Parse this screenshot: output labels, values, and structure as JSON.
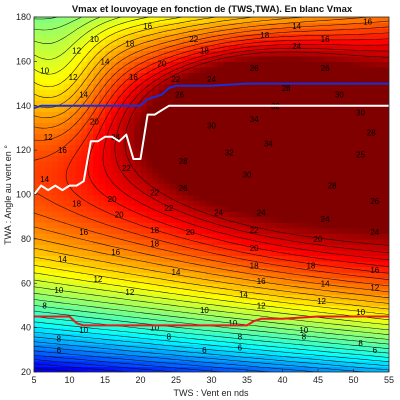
{
  "chart_data": {
    "type": "contour",
    "title": "Vmax et louvoyage en fonction de (TWS,TWA). En blanc Vmax",
    "xlabel": "TWS : Vent en nds",
    "ylabel": "TWA : Angle au vent en °",
    "xlim": [
      5,
      55
    ],
    "ylim": [
      20,
      180
    ],
    "xticks": [
      "5",
      "10",
      "15",
      "20",
      "25",
      "30",
      "35",
      "40",
      "45",
      "50",
      "55"
    ],
    "yticks": [
      "20",
      "40",
      "60",
      "80",
      "100",
      "120",
      "140",
      "160",
      "180"
    ],
    "grid": false,
    "colormap": "jet",
    "z_range": [
      0,
      36
    ],
    "contour_labels": [
      {
        "x": 13.5,
        "y": 170,
        "text": "10"
      },
      {
        "x": 21,
        "y": 176,
        "text": "16"
      },
      {
        "x": 42,
        "y": 176,
        "text": "14"
      },
      {
        "x": 52,
        "y": 178,
        "text": "16"
      },
      {
        "x": 11,
        "y": 165,
        "text": "12"
      },
      {
        "x": 15,
        "y": 160,
        "text": "14"
      },
      {
        "x": 18.5,
        "y": 168,
        "text": "18"
      },
      {
        "x": 27.5,
        "y": 170,
        "text": "22"
      },
      {
        "x": 37.5,
        "y": 172,
        "text": "18"
      },
      {
        "x": 46,
        "y": 170,
        "text": "16"
      },
      {
        "x": 23,
        "y": 159,
        "text": "20"
      },
      {
        "x": 29,
        "y": 165,
        "text": "18"
      },
      {
        "x": 42,
        "y": 167,
        "text": "24"
      },
      {
        "x": 6.5,
        "y": 156,
        "text": "10"
      },
      {
        "x": 10.5,
        "y": 153,
        "text": "12"
      },
      {
        "x": 12,
        "y": 145,
        "text": "14"
      },
      {
        "x": 19,
        "y": 153,
        "text": "16"
      },
      {
        "x": 25,
        "y": 152,
        "text": "22"
      },
      {
        "x": 30,
        "y": 152,
        "text": "24"
      },
      {
        "x": 36,
        "y": 157,
        "text": "26"
      },
      {
        "x": 46,
        "y": 157,
        "text": "26"
      },
      {
        "x": 40.5,
        "y": 148,
        "text": "28"
      },
      {
        "x": 25.5,
        "y": 145,
        "text": "26"
      },
      {
        "x": 39,
        "y": 140,
        "text": "32"
      },
      {
        "x": 36,
        "y": 134,
        "text": "34"
      },
      {
        "x": 30,
        "y": 131,
        "text": "30"
      },
      {
        "x": 7,
        "y": 126,
        "text": "12"
      },
      {
        "x": 9,
        "y": 120,
        "text": "16"
      },
      {
        "x": 13.5,
        "y": 133,
        "text": "20"
      },
      {
        "x": 16.5,
        "y": 126,
        "text": "24"
      },
      {
        "x": 48,
        "y": 145,
        "text": "30"
      },
      {
        "x": 51,
        "y": 137,
        "text": "30"
      },
      {
        "x": 52.5,
        "y": 128,
        "text": "28"
      },
      {
        "x": 51,
        "y": 118,
        "text": "25"
      },
      {
        "x": 38,
        "y": 123,
        "text": "34"
      },
      {
        "x": 32.5,
        "y": 119,
        "text": "32"
      },
      {
        "x": 26,
        "y": 115,
        "text": "28"
      },
      {
        "x": 18,
        "y": 112,
        "text": "22"
      },
      {
        "x": 6.5,
        "y": 107,
        "text": "14"
      },
      {
        "x": 11,
        "y": 96,
        "text": "18"
      },
      {
        "x": 16,
        "y": 98,
        "text": "20"
      },
      {
        "x": 22,
        "y": 101,
        "text": "22"
      },
      {
        "x": 26,
        "y": 103,
        "text": "26"
      },
      {
        "x": 35,
        "y": 109,
        "text": "30"
      },
      {
        "x": 47,
        "y": 104,
        "text": "28"
      },
      {
        "x": 53,
        "y": 97,
        "text": "26"
      },
      {
        "x": 17,
        "y": 91,
        "text": "20"
      },
      {
        "x": 24,
        "y": 94,
        "text": "22"
      },
      {
        "x": 31,
        "y": 92,
        "text": "24"
      },
      {
        "x": 37,
        "y": 92,
        "text": "24"
      },
      {
        "x": 46,
        "y": 89,
        "text": "24"
      },
      {
        "x": 53,
        "y": 83,
        "text": "24"
      },
      {
        "x": 12,
        "y": 83,
        "text": "16"
      },
      {
        "x": 22,
        "y": 84,
        "text": "18"
      },
      {
        "x": 27,
        "y": 83,
        "text": "20"
      },
      {
        "x": 36,
        "y": 84,
        "text": "22"
      },
      {
        "x": 45,
        "y": 80,
        "text": "20"
      },
      {
        "x": 16.5,
        "y": 74,
        "text": "16"
      },
      {
        "x": 22,
        "y": 78,
        "text": "18"
      },
      {
        "x": 36,
        "y": 76,
        "text": "20"
      },
      {
        "x": 9,
        "y": 71,
        "text": "14"
      },
      {
        "x": 36,
        "y": 68,
        "text": "18"
      },
      {
        "x": 44,
        "y": 68,
        "text": "18"
      },
      {
        "x": 53,
        "y": 66,
        "text": "16"
      },
      {
        "x": 14,
        "y": 62,
        "text": "12"
      },
      {
        "x": 25,
        "y": 65,
        "text": "14"
      },
      {
        "x": 37,
        "y": 61,
        "text": "16"
      },
      {
        "x": 46,
        "y": 60,
        "text": "14"
      },
      {
        "x": 53,
        "y": 58,
        "text": "12"
      },
      {
        "x": 8.5,
        "y": 57,
        "text": "10"
      },
      {
        "x": 18.5,
        "y": 56,
        "text": "12"
      },
      {
        "x": 34.5,
        "y": 55,
        "text": "14"
      },
      {
        "x": 6.5,
        "y": 50,
        "text": "8"
      },
      {
        "x": 29,
        "y": 48,
        "text": "10"
      },
      {
        "x": 37,
        "y": 50,
        "text": "12"
      },
      {
        "x": 45.5,
        "y": 52,
        "text": "12"
      },
      {
        "x": 51,
        "y": 47,
        "text": "10"
      },
      {
        "x": 12,
        "y": 39,
        "text": "10"
      },
      {
        "x": 22,
        "y": 40,
        "text": "10"
      },
      {
        "x": 33,
        "y": 42,
        "text": "10"
      },
      {
        "x": 43,
        "y": 39,
        "text": "10"
      },
      {
        "x": 8.5,
        "y": 35,
        "text": "8"
      },
      {
        "x": 24,
        "y": 36,
        "text": "8"
      },
      {
        "x": 34,
        "y": 36,
        "text": "8"
      },
      {
        "x": 43,
        "y": 36,
        "text": "8"
      },
      {
        "x": 51,
        "y": 33,
        "text": "8"
      },
      {
        "x": 8.5,
        "y": 30,
        "text": "6"
      },
      {
        "x": 29,
        "y": 30,
        "text": "6"
      },
      {
        "x": 34,
        "y": 31,
        "text": "6"
      },
      {
        "x": 53,
        "y": 30,
        "text": "6"
      }
    ],
    "series": [
      {
        "color": "#ffffff",
        "x": [
          5,
          6,
          7,
          8,
          9,
          10,
          11,
          12,
          13,
          14,
          15,
          16,
          17,
          18,
          19,
          20,
          21,
          22,
          23,
          24,
          25,
          27,
          30,
          35,
          40,
          45,
          50,
          55
        ],
        "y": [
          100,
          104,
          102,
          104,
          102,
          104,
          104,
          106,
          124,
          124,
          126,
          126,
          124,
          127,
          116,
          116,
          136,
          136,
          138,
          140,
          140,
          140,
          140,
          140,
          140,
          140,
          140,
          140
        ]
      },
      {
        "color": "#1a2fd8",
        "x": [
          5,
          6,
          10,
          15,
          20,
          21,
          22,
          23,
          24,
          25,
          30,
          35,
          40,
          45,
          50,
          55
        ],
        "y": [
          139,
          140,
          140,
          140,
          140,
          143,
          144,
          145,
          148,
          149,
          149,
          150,
          150,
          150,
          150,
          150
        ]
      },
      {
        "color": "#e81a1a",
        "x": [
          5,
          8,
          10,
          11,
          12,
          15,
          20,
          25,
          30,
          35,
          36,
          37,
          40,
          45,
          50,
          55
        ],
        "y": [
          45,
          45,
          45,
          42,
          41,
          41,
          41,
          41,
          41,
          41,
          43,
          44,
          44,
          45,
          45,
          45
        ]
      }
    ]
  }
}
